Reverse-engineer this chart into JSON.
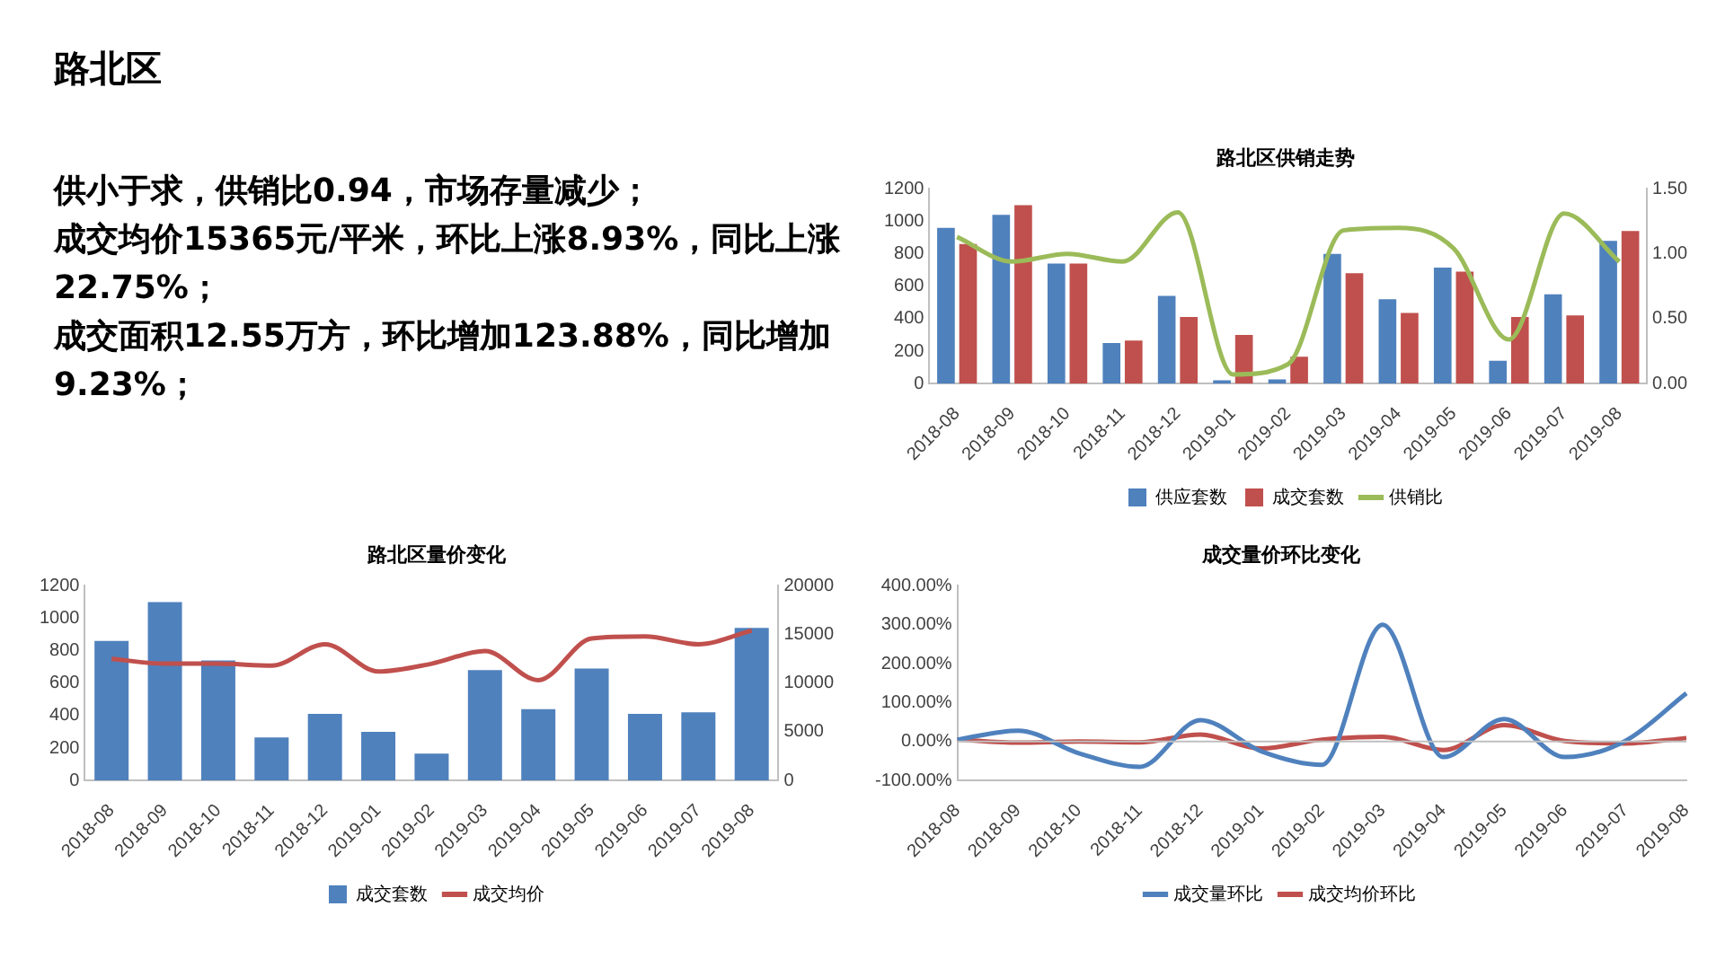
{
  "chart_data": [
    {
      "type": "other",
      "title": "路北区",
      "annotations": [
        "供小于求，供销比0.94，市场存量减少；",
        "成交均价15365元/平米，环比上涨8.93%，同比上涨22.75%；",
        "成交面积12.55万方，环比增加123.88%，同比增加9.23%；"
      ]
    },
    {
      "type": "bar",
      "title": "路北区供销走势",
      "categories": [
        "2018-08",
        "2018-09",
        "2018-10",
        "2018-11",
        "2018-12",
        "2019-01",
        "2019-02",
        "2019-03",
        "2019-04",
        "2019-05",
        "2019-06",
        "2019-07",
        "2019-08"
      ],
      "series": [
        {
          "name": "供应套数",
          "color": "#4f81bd",
          "values": [
            960,
            1040,
            740,
            250,
            540,
            20,
            25,
            800,
            520,
            715,
            140,
            550,
            880
          ]
        },
        {
          "name": "成交套数",
          "color": "#c0504d",
          "values": [
            860,
            1100,
            740,
            265,
            410,
            300,
            165,
            680,
            435,
            690,
            410,
            420,
            940
          ]
        },
        {
          "name": "供销比",
          "type": "line",
          "axis": "y2",
          "color": "#9bbb59",
          "values": [
            1.13,
            0.94,
            1.0,
            0.94,
            1.32,
            0.07,
            0.15,
            1.18,
            1.2,
            1.04,
            0.34,
            1.31,
            0.94
          ]
        }
      ],
      "ylim": [
        0,
        1200
      ],
      "yticks": [
        0,
        200,
        400,
        600,
        800,
        1000,
        1200
      ],
      "y2lim": [
        0,
        1.5
      ],
      "y2ticks": [
        {
          "value": 0,
          "label": "0.00"
        },
        {
          "value": 0.5,
          "label": "0.50"
        },
        {
          "value": 1,
          "label": "1.00"
        },
        {
          "value": 1.5,
          "label": "1.50"
        }
      ],
      "legend": "bottom",
      "marker": "none"
    },
    {
      "type": "bar",
      "title": "路北区量价变化",
      "categories": [
        "2018-08",
        "2018-09",
        "2018-10",
        "2018-11",
        "2018-12",
        "2019-01",
        "2019-02",
        "2019-03",
        "2019-04",
        "2019-05",
        "2019-06",
        "2019-07",
        "2019-08"
      ],
      "series": [
        {
          "name": "成交套数",
          "color": "#4f81bd",
          "values": [
            860,
            1100,
            740,
            265,
            410,
            300,
            165,
            680,
            440,
            690,
            410,
            420,
            940
          ]
        },
        {
          "name": "成交均价",
          "type": "line",
          "axis": "y2",
          "color": "#c0504d",
          "values": [
            12500,
            12000,
            12000,
            11800,
            14000,
            11200,
            12000,
            13300,
            10300,
            14600,
            14800,
            14000,
            15400
          ]
        }
      ],
      "ylim": [
        0,
        1200
      ],
      "yticks": [
        0,
        200,
        400,
        600,
        800,
        1000,
        1200
      ],
      "y2lim": [
        0,
        20000
      ],
      "y2ticks": [
        0,
        5000,
        10000,
        15000,
        20000
      ],
      "legend": "bottom",
      "marker": "none"
    },
    {
      "type": "line",
      "title": "成交量价环比变化",
      "categories": [
        "2018-08",
        "2018-09",
        "2018-10",
        "2018-11",
        "2018-12",
        "2019-01",
        "2019-02",
        "2019-03",
        "2019-04",
        "2019-05",
        "2019-06",
        "2019-07",
        "2019-08"
      ],
      "series": [
        {
          "name": "成交量环比",
          "color": "#4f81bd",
          "values": [
            5,
            28,
            -30,
            -65,
            55,
            -25,
            -60,
            300,
            -40,
            58,
            -40,
            2,
            124
          ]
        },
        {
          "name": "成交均价环比",
          "color": "#c0504d",
          "values": [
            5,
            -3,
            0,
            -2,
            18,
            -18,
            5,
            12,
            -22,
            42,
            1,
            -5,
            9
          ]
        }
      ],
      "ylim": [
        -100,
        400
      ],
      "yticks": [
        {
          "value": -100,
          "label": "-100.00%"
        },
        {
          "value": 0,
          "label": "0.00%"
        },
        {
          "value": 100,
          "label": "100.00%"
        },
        {
          "value": 200,
          "label": "200.00%"
        },
        {
          "value": 300,
          "label": "300.00%"
        },
        {
          "value": 400,
          "label": "400.00%"
        }
      ],
      "ref_lines": [
        {
          "axis": "y",
          "value": 0,
          "color": "#bfbfbf"
        }
      ],
      "legend": "bottom",
      "marker": "none"
    }
  ]
}
